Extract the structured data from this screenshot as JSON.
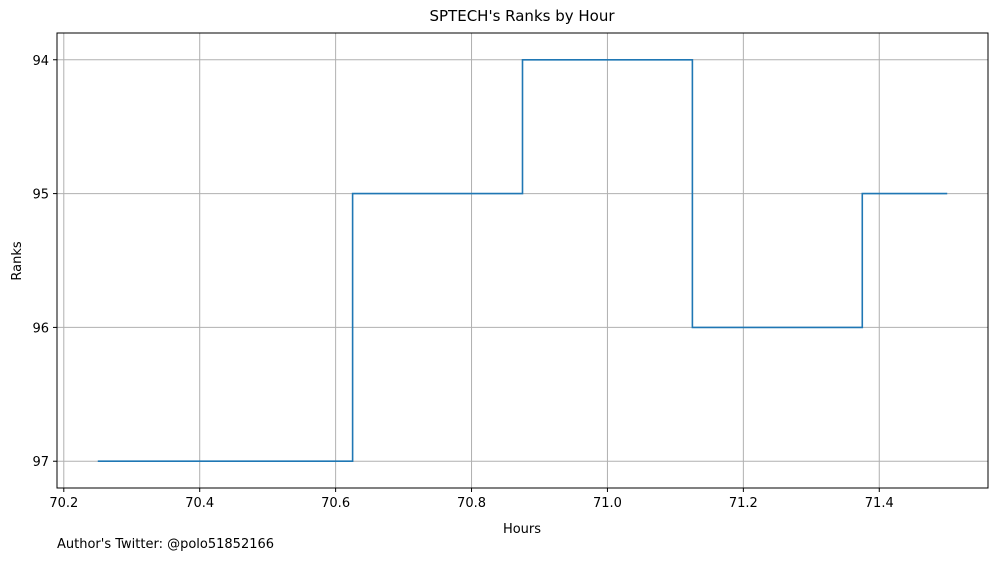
{
  "chart_data": {
    "type": "line",
    "step": "post",
    "title": "SPTECH's Ranks by Hour",
    "xlabel": "Hours",
    "ylabel": "Ranks",
    "xlim": [
      70.19,
      71.56
    ],
    "ylim": [
      97.2,
      93.8
    ],
    "y_inverted": true,
    "x_ticks": [
      {
        "value": 70.2,
        "label": "70.2"
      },
      {
        "value": 70.4,
        "label": "70.4"
      },
      {
        "value": 70.6,
        "label": "70.6"
      },
      {
        "value": 70.8,
        "label": "70.8"
      },
      {
        "value": 71.0,
        "label": "71.0"
      },
      {
        "value": 71.2,
        "label": "71.2"
      },
      {
        "value": 71.4,
        "label": "71.4"
      }
    ],
    "y_ticks": [
      {
        "value": 94,
        "label": "94"
      },
      {
        "value": 95,
        "label": "95"
      },
      {
        "value": 96,
        "label": "96"
      },
      {
        "value": 97,
        "label": "97"
      }
    ],
    "grid": true,
    "series": [
      {
        "color": "#1f77b4",
        "x": [
          70.25,
          70.625,
          70.875,
          71.125,
          71.375,
          71.5
        ],
        "y": [
          97,
          95,
          94,
          96,
          95,
          95
        ]
      }
    ]
  },
  "footer": {
    "credit": "Author's Twitter: @polo51852166"
  }
}
